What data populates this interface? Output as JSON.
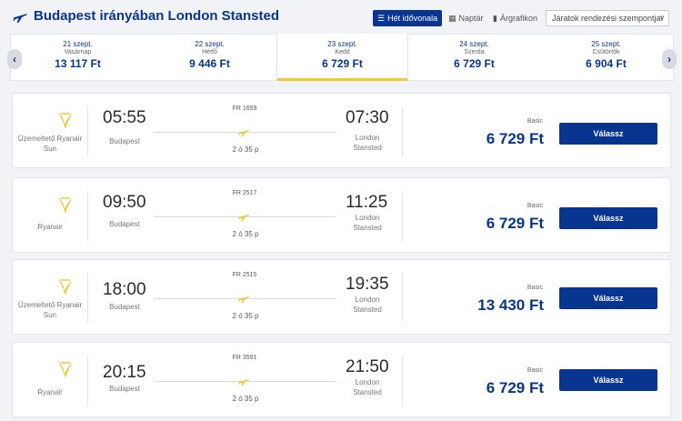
{
  "header": {
    "title": "Budapest irányában London Stansted",
    "view_week": "Hét idővonala",
    "view_calendar": "Naptár",
    "view_chart": "Árgrafikon",
    "sort_placeholder": "Járatok rendezési szempontja:"
  },
  "dates": [
    {
      "date": "21 szept.",
      "weekday": "Vasárnap",
      "price": "13 117 Ft"
    },
    {
      "date": "22 szept.",
      "weekday": "Hétfő",
      "price": "9 446 Ft"
    },
    {
      "date": "23 szept.",
      "weekday": "Kedd",
      "price": "6 729 Ft"
    },
    {
      "date": "24 szept.",
      "weekday": "Szerda",
      "price": "6 729 Ft"
    },
    {
      "date": "25 szept.",
      "weekday": "Csütörtök",
      "price": "6 904 Ft"
    }
  ],
  "selected_date_index": 2,
  "flights": [
    {
      "operator": "Üzemeltető Ryanair Sun",
      "flight_no": "FR 1659",
      "dep_time": "05:55",
      "dep_city": "Budapest",
      "arr_time": "07:30",
      "arr_city": "London Stansted",
      "duration": "2 ó 35 p",
      "fare": "Basic",
      "price": "6 729 Ft",
      "button": "Válassz"
    },
    {
      "operator": "Ryanair",
      "flight_no": "FR 2517",
      "dep_time": "09:50",
      "dep_city": "Budapest",
      "arr_time": "11:25",
      "arr_city": "London Stansted",
      "duration": "2 ó 35 p",
      "fare": "Basic",
      "price": "6 729 Ft",
      "button": "Válassz"
    },
    {
      "operator": "Üzemeltető Ryanair Sun",
      "flight_no": "FR 2515",
      "dep_time": "18:00",
      "dep_city": "Budapest",
      "arr_time": "19:35",
      "arr_city": "London Stansted",
      "duration": "2 ó 35 p",
      "fare": "Basic",
      "price": "13 430 Ft",
      "button": "Válassz"
    },
    {
      "operator": "Ryanair",
      "flight_no": "FR 3591",
      "dep_time": "20:15",
      "dep_city": "Budapest",
      "arr_time": "21:50",
      "arr_city": "London Stansted",
      "duration": "2 ó 35 p",
      "fare": "Basic",
      "price": "6 729 Ft",
      "button": "Válassz"
    }
  ],
  "colors": {
    "brand_blue": "#073590",
    "accent_yellow": "#f1c933"
  }
}
